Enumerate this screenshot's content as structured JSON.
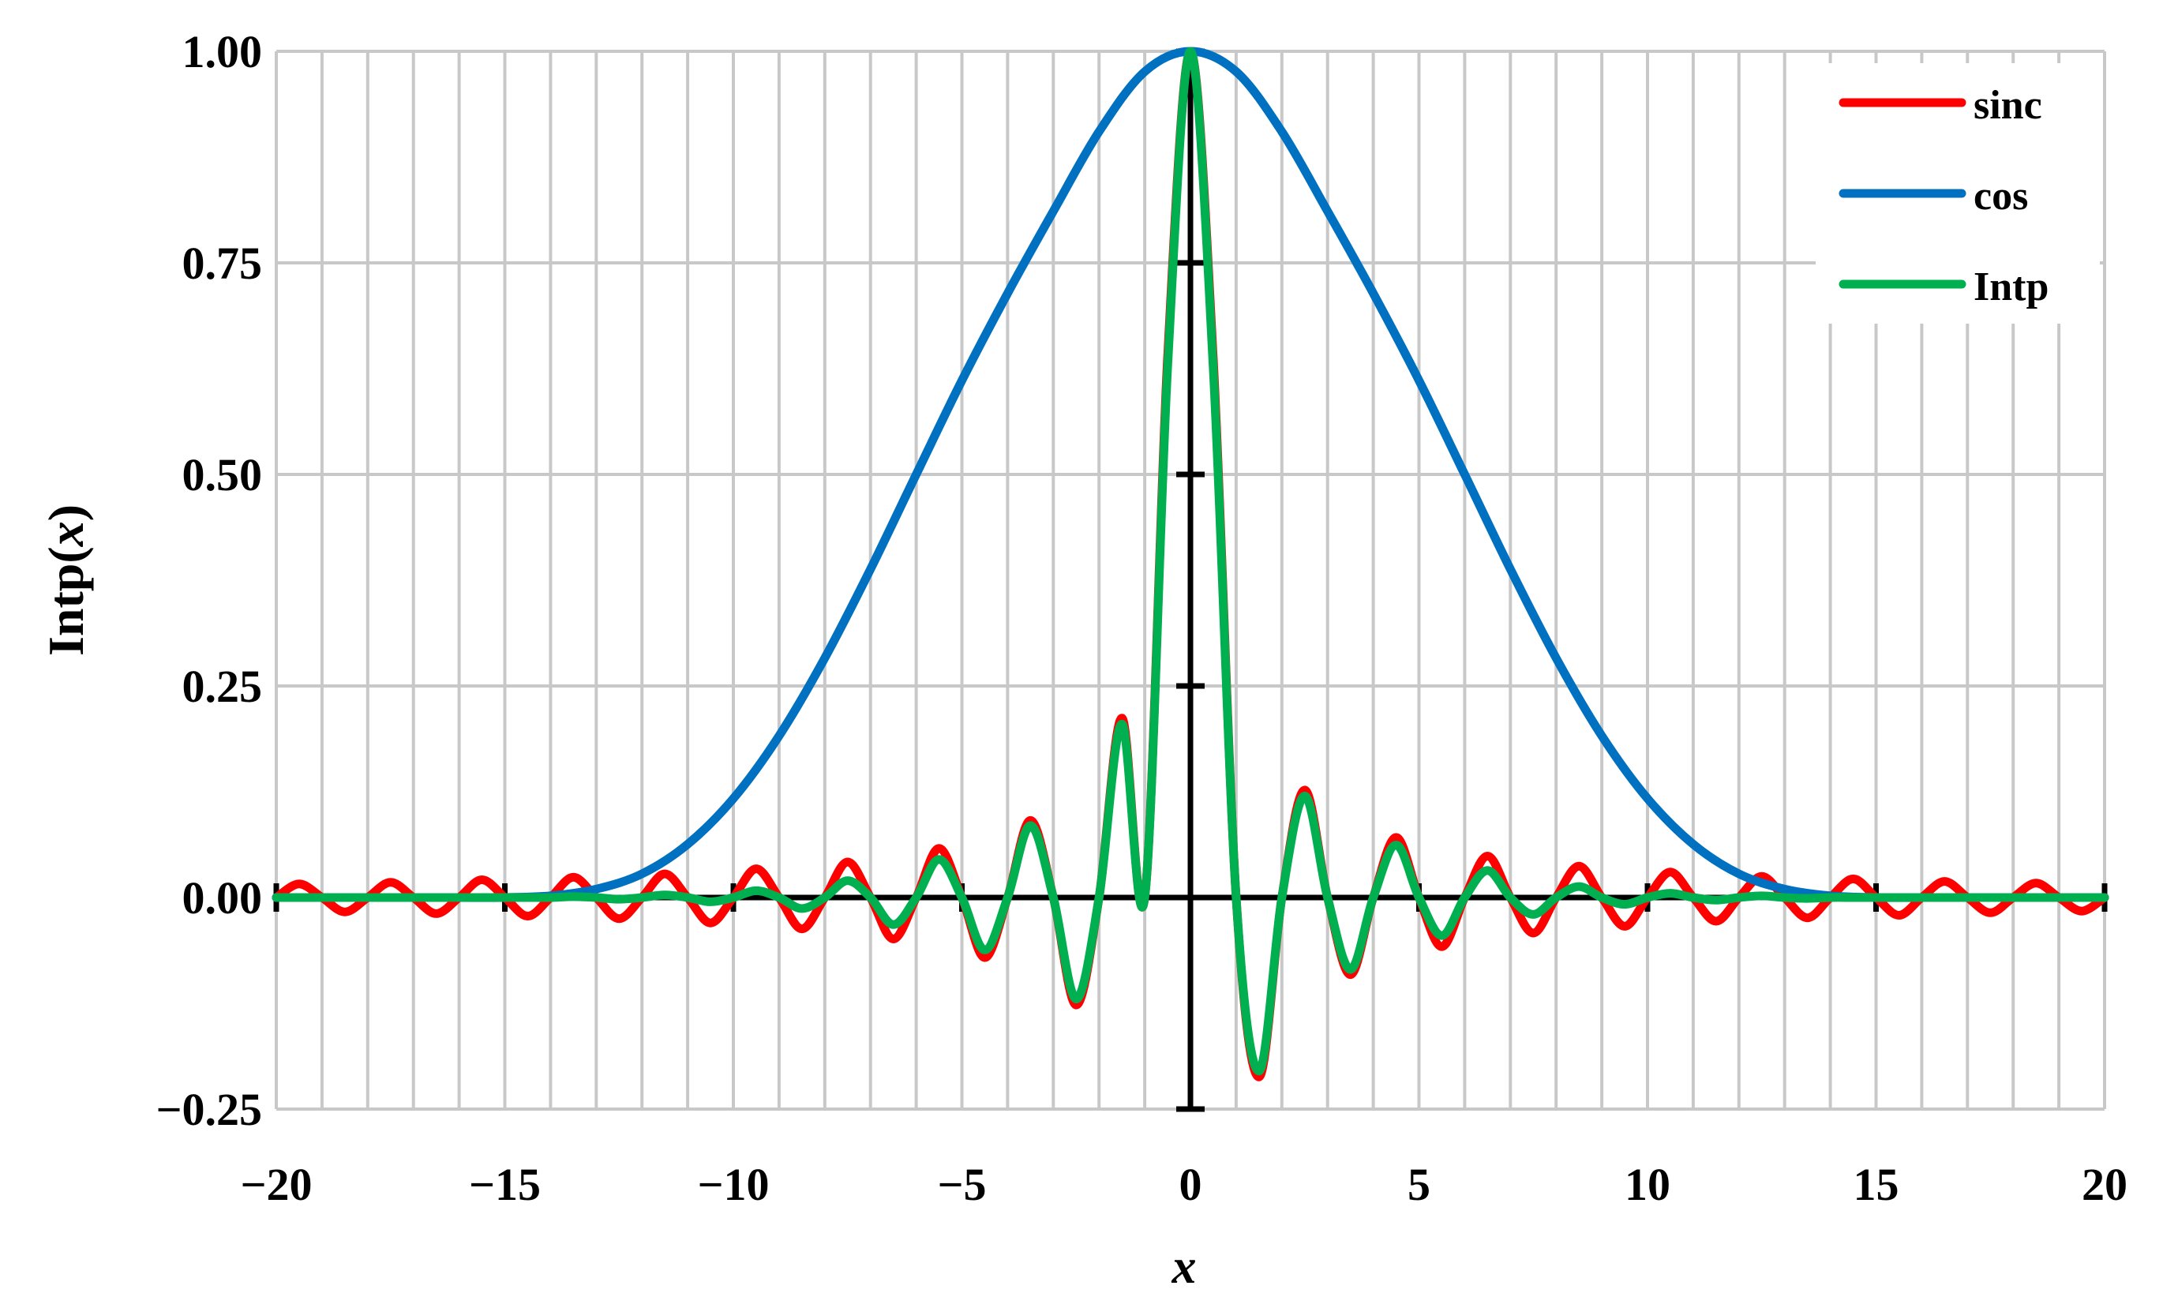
{
  "chart_data": {
    "type": "line",
    "xlabel": "x",
    "ylabel": "Intp(x)",
    "xlim": [
      -20,
      20
    ],
    "ylim": [
      -0.25,
      1.0
    ],
    "x_ticks": [
      "−20",
      "−15",
      "−10",
      "−5",
      "0",
      "5",
      "10",
      "15",
      "20"
    ],
    "y_ticks": [
      "−0.25",
      "0.00",
      "0.25",
      "0.50",
      "0.75",
      "1.00"
    ],
    "grid": "on",
    "legend_position": "top-right",
    "series": [
      {
        "name": "sinc",
        "color": "#ff0000",
        "x": [
          -20,
          -19.5,
          -19,
          -18.5,
          -18,
          -17.5,
          -17,
          -16.5,
          -16,
          -15.5,
          -15,
          -14.5,
          -14,
          -13.5,
          -13,
          -12.5,
          -12,
          -11.5,
          -11,
          -10.5,
          -10,
          -9.5,
          -9,
          -8.5,
          -8,
          -7.5,
          -7,
          -6.5,
          -6,
          -5.5,
          -5,
          -4.5,
          -4,
          -3.5,
          -3,
          -2.5,
          -2,
          -1.5,
          -1,
          -0.5,
          0,
          0.5,
          1,
          1.5,
          2,
          2.5,
          3,
          3.5,
          4,
          4.5,
          5,
          5.5,
          6,
          6.5,
          7,
          7.5,
          8,
          8.5,
          9,
          9.5,
          10,
          10.5,
          11,
          11.5,
          12,
          12.5,
          13,
          13.5,
          14,
          14.5,
          15,
          15.5,
          16,
          16.5,
          17,
          17.5,
          18,
          18.5,
          19,
          19.5,
          20
        ],
        "y": [
          0,
          0.016,
          0,
          -0.017,
          0,
          0.018,
          0,
          -0.019,
          0,
          0.021,
          0,
          -0.022,
          0,
          0.024,
          0,
          -0.025,
          0,
          0.028,
          0,
          -0.03,
          0,
          0.034,
          0,
          -0.037,
          0,
          0.042,
          0,
          -0.049,
          0,
          0.058,
          0,
          -0.071,
          0,
          0.091,
          0,
          -0.127,
          0,
          0.212,
          0,
          0.637,
          1.0,
          0.637,
          0,
          -0.212,
          0,
          0.127,
          0,
          -0.091,
          0,
          0.071,
          0,
          -0.058,
          0,
          0.049,
          0,
          -0.042,
          0,
          0.037,
          0,
          -0.034,
          0,
          0.03,
          0,
          -0.028,
          0,
          0.025,
          0,
          -0.024,
          0,
          0.022,
          0,
          -0.021,
          0,
          0.019,
          0,
          -0.018,
          0,
          0.017,
          0,
          -0.016,
          0
        ]
      },
      {
        "name": "cos",
        "color": "#0070c0",
        "x": [
          -20,
          -19,
          -18,
          -17,
          -16,
          -15,
          -14,
          -13,
          -12,
          -11,
          -10,
          -9,
          -8,
          -7,
          -6,
          -5,
          -4,
          -3,
          -2,
          -1,
          0,
          1,
          2,
          3,
          4,
          5,
          6,
          7,
          8,
          9,
          10,
          11,
          12,
          13,
          14,
          15,
          16,
          17,
          18,
          19,
          20
        ],
        "y": [
          0,
          0,
          0,
          0,
          0,
          0,
          0.002,
          0.01,
          0.028,
          0.063,
          0.117,
          0.191,
          0.283,
          0.388,
          0.5,
          0.611,
          0.714,
          0.811,
          0.905,
          0.976,
          1.0,
          0.976,
          0.905,
          0.811,
          0.714,
          0.611,
          0.5,
          0.388,
          0.283,
          0.191,
          0.117,
          0.063,
          0.028,
          0.01,
          0.002,
          0,
          0,
          0,
          0,
          0,
          0
        ]
      },
      {
        "name": "Intp",
        "color": "#00b050",
        "x": [
          -20,
          -19.5,
          -19,
          -18.5,
          -18,
          -17.5,
          -17,
          -16.5,
          -16,
          -15.5,
          -15,
          -14.5,
          -14,
          -13.5,
          -13,
          -12.5,
          -12,
          -11.5,
          -11,
          -10.5,
          -10,
          -9.5,
          -9,
          -8.5,
          -8,
          -7.5,
          -7,
          -6.5,
          -6,
          -5.5,
          -5,
          -4.5,
          -4,
          -3.5,
          -3,
          -2.5,
          -2,
          -1.5,
          -1,
          -0.5,
          0,
          0.5,
          1,
          1.5,
          2,
          2.5,
          3,
          3.5,
          4,
          4.5,
          5,
          5.5,
          6,
          6.5,
          7,
          7.5,
          8,
          8.5,
          9,
          9.5,
          10,
          10.5,
          11,
          11.5,
          12,
          12.5,
          13,
          13.5,
          14,
          14.5,
          15,
          15.5,
          16,
          16.5,
          17,
          17.5,
          18,
          18.5,
          19,
          19.5,
          20
        ],
        "y": [
          0,
          0,
          0,
          0,
          0,
          0,
          0,
          0,
          0,
          0,
          0,
          0,
          0,
          0.001,
          0,
          -0.002,
          0,
          0.003,
          0,
          -0.005,
          0,
          0.008,
          0,
          -0.013,
          0,
          0.02,
          0,
          -0.032,
          0,
          0.045,
          0,
          -0.062,
          0,
          0.085,
          0,
          -0.12,
          0,
          0.205,
          0,
          0.625,
          1.0,
          0.625,
          0,
          -0.205,
          0,
          0.12,
          0,
          -0.085,
          0,
          0.062,
          0,
          -0.045,
          0,
          0.032,
          0,
          -0.02,
          0,
          0.013,
          0,
          -0.008,
          0,
          0.005,
          0,
          -0.003,
          0,
          0.002,
          0,
          -0.001,
          0,
          0,
          0,
          0,
          0,
          0,
          0,
          0,
          0,
          0,
          0,
          0,
          0
        ]
      }
    ]
  }
}
